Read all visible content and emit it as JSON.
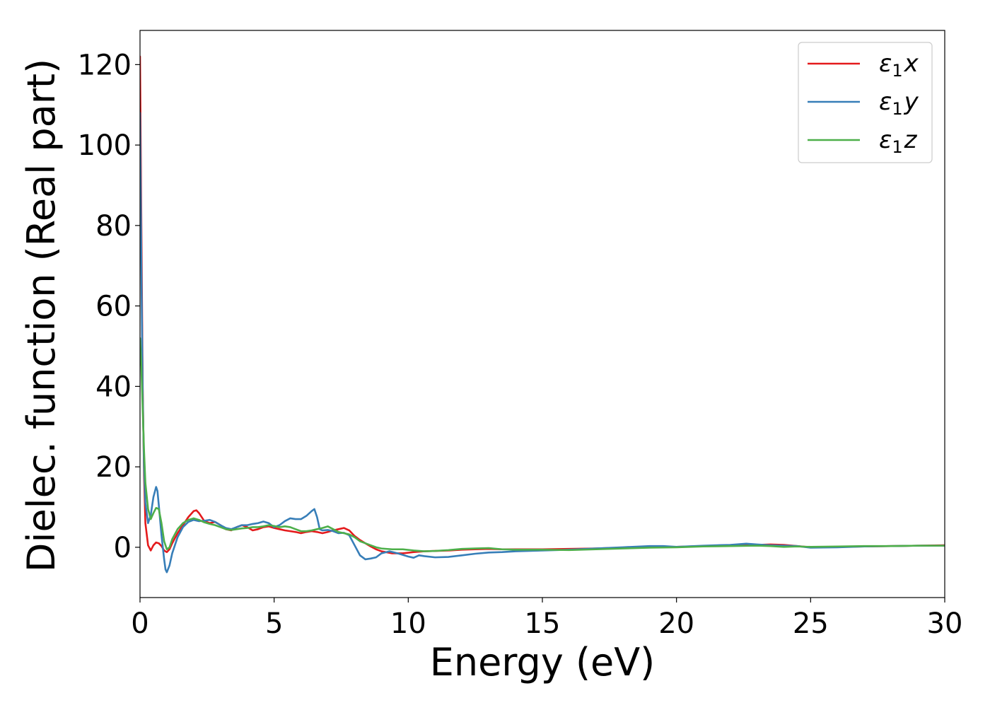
{
  "chart_data": {
    "type": "line",
    "title": "",
    "xlabel": "Energy (eV)",
    "ylabel": "Dielec. function (Real part)",
    "xlim": [
      0,
      30
    ],
    "ylim": [
      -12.5,
      128.5
    ],
    "x_ticks": [
      0,
      5,
      10,
      15,
      20,
      25,
      30
    ],
    "y_ticks": [
      0,
      20,
      40,
      60,
      80,
      100,
      120
    ],
    "grid": false,
    "legend_position": "top-right",
    "series": [
      {
        "name": "ε₁x",
        "legend_base": "ε",
        "legend_sub": "1",
        "legend_var": "x",
        "color": "#e41a1c",
        "points": [
          [
            0.0,
            122.0
          ],
          [
            0.05,
            80.0
          ],
          [
            0.1,
            40.0
          ],
          [
            0.15,
            18.0
          ],
          [
            0.2,
            6.0
          ],
          [
            0.3,
            0.5
          ],
          [
            0.4,
            -0.8
          ],
          [
            0.5,
            0.5
          ],
          [
            0.6,
            1.2
          ],
          [
            0.7,
            1.0
          ],
          [
            0.8,
            0.3
          ],
          [
            0.9,
            -0.8
          ],
          [
            1.0,
            -1.2
          ],
          [
            1.1,
            -0.5
          ],
          [
            1.2,
            1.0
          ],
          [
            1.4,
            3.5
          ],
          [
            1.6,
            5.5
          ],
          [
            1.8,
            7.5
          ],
          [
            2.0,
            9.0
          ],
          [
            2.1,
            9.2
          ],
          [
            2.2,
            8.5
          ],
          [
            2.4,
            6.5
          ],
          [
            2.6,
            6.0
          ],
          [
            2.8,
            6.3
          ],
          [
            3.0,
            5.5
          ],
          [
            3.2,
            4.5
          ],
          [
            3.4,
            4.2
          ],
          [
            3.6,
            5.0
          ],
          [
            3.8,
            5.5
          ],
          [
            4.0,
            5.0
          ],
          [
            4.2,
            4.2
          ],
          [
            4.4,
            4.5
          ],
          [
            4.6,
            5.0
          ],
          [
            4.8,
            5.2
          ],
          [
            5.0,
            4.8
          ],
          [
            5.2,
            4.5
          ],
          [
            5.4,
            4.2
          ],
          [
            5.6,
            4.0
          ],
          [
            5.8,
            3.8
          ],
          [
            6.0,
            3.5
          ],
          [
            6.2,
            3.8
          ],
          [
            6.4,
            4.0
          ],
          [
            6.6,
            3.8
          ],
          [
            6.8,
            3.5
          ],
          [
            7.0,
            3.8
          ],
          [
            7.2,
            4.2
          ],
          [
            7.4,
            4.5
          ],
          [
            7.6,
            4.8
          ],
          [
            7.8,
            4.2
          ],
          [
            8.0,
            2.8
          ],
          [
            8.2,
            1.8
          ],
          [
            8.4,
            1.0
          ],
          [
            8.6,
            0.2
          ],
          [
            8.8,
            -0.5
          ],
          [
            9.0,
            -1.0
          ],
          [
            9.4,
            -1.5
          ],
          [
            9.8,
            -1.5
          ],
          [
            10.2,
            -1.2
          ],
          [
            10.6,
            -1.0
          ],
          [
            11.0,
            -0.9
          ],
          [
            11.5,
            -0.8
          ],
          [
            12.0,
            -0.6
          ],
          [
            12.5,
            -0.5
          ],
          [
            13.0,
            -0.4
          ],
          [
            13.5,
            -0.5
          ],
          [
            14.0,
            -0.5
          ],
          [
            15.0,
            -0.5
          ],
          [
            16.0,
            -0.4
          ],
          [
            17.0,
            -0.3
          ],
          [
            18.0,
            -0.1
          ],
          [
            19.0,
            0.0
          ],
          [
            20.0,
            0.1
          ],
          [
            21.0,
            0.3
          ],
          [
            22.0,
            0.5
          ],
          [
            23.0,
            0.6
          ],
          [
            23.5,
            0.7
          ],
          [
            24.0,
            0.6
          ],
          [
            24.5,
            0.3
          ],
          [
            25.0,
            0.0
          ],
          [
            26.0,
            0.1
          ],
          [
            27.0,
            0.2
          ],
          [
            28.0,
            0.3
          ],
          [
            29.0,
            0.4
          ],
          [
            30.0,
            0.5
          ]
        ]
      },
      {
        "name": "ε₁y",
        "legend_base": "ε",
        "legend_sub": "1",
        "legend_var": "y",
        "color": "#377eb8",
        "points": [
          [
            0.0,
            108.0
          ],
          [
            0.05,
            70.0
          ],
          [
            0.1,
            38.0
          ],
          [
            0.15,
            20.0
          ],
          [
            0.2,
            11.0
          ],
          [
            0.3,
            6.0
          ],
          [
            0.4,
            8.0
          ],
          [
            0.5,
            12.5
          ],
          [
            0.6,
            15.0
          ],
          [
            0.65,
            14.0
          ],
          [
            0.7,
            10.5
          ],
          [
            0.8,
            3.0
          ],
          [
            0.9,
            -3.0
          ],
          [
            0.95,
            -5.5
          ],
          [
            1.0,
            -6.2
          ],
          [
            1.1,
            -4.5
          ],
          [
            1.2,
            -1.5
          ],
          [
            1.4,
            2.5
          ],
          [
            1.6,
            5.0
          ],
          [
            1.8,
            6.3
          ],
          [
            2.0,
            6.8
          ],
          [
            2.2,
            6.5
          ],
          [
            2.4,
            6.6
          ],
          [
            2.6,
            6.8
          ],
          [
            2.8,
            6.3
          ],
          [
            3.0,
            5.5
          ],
          [
            3.2,
            4.8
          ],
          [
            3.4,
            4.5
          ],
          [
            3.6,
            5.0
          ],
          [
            3.8,
            5.5
          ],
          [
            4.0,
            5.5
          ],
          [
            4.2,
            5.8
          ],
          [
            4.4,
            6.0
          ],
          [
            4.6,
            6.4
          ],
          [
            4.8,
            6.0
          ],
          [
            5.0,
            5.0
          ],
          [
            5.2,
            5.5
          ],
          [
            5.4,
            6.5
          ],
          [
            5.6,
            7.2
          ],
          [
            5.8,
            7.0
          ],
          [
            6.0,
            7.0
          ],
          [
            6.2,
            7.8
          ],
          [
            6.4,
            9.0
          ],
          [
            6.5,
            9.5
          ],
          [
            6.6,
            7.5
          ],
          [
            6.7,
            4.5
          ],
          [
            6.8,
            4.2
          ],
          [
            7.0,
            4.3
          ],
          [
            7.2,
            4.0
          ],
          [
            7.4,
            3.5
          ],
          [
            7.6,
            3.6
          ],
          [
            7.8,
            3.0
          ],
          [
            8.0,
            0.5
          ],
          [
            8.2,
            -2.0
          ],
          [
            8.4,
            -3.0
          ],
          [
            8.6,
            -2.8
          ],
          [
            8.8,
            -2.5
          ],
          [
            9.0,
            -1.5
          ],
          [
            9.3,
            -1.0
          ],
          [
            9.6,
            -1.5
          ],
          [
            10.0,
            -2.3
          ],
          [
            10.2,
            -2.6
          ],
          [
            10.4,
            -2.0
          ],
          [
            10.6,
            -2.2
          ],
          [
            11.0,
            -2.5
          ],
          [
            11.5,
            -2.4
          ],
          [
            12.0,
            -2.0
          ],
          [
            12.5,
            -1.6
          ],
          [
            13.0,
            -1.3
          ],
          [
            13.5,
            -1.2
          ],
          [
            14.0,
            -1.0
          ],
          [
            15.0,
            -0.8
          ],
          [
            16.0,
            -0.6
          ],
          [
            17.0,
            -0.3
          ],
          [
            18.0,
            0.0
          ],
          [
            19.0,
            0.3
          ],
          [
            19.5,
            0.3
          ],
          [
            20.0,
            0.1
          ],
          [
            21.0,
            0.4
          ],
          [
            22.0,
            0.6
          ],
          [
            22.6,
            0.9
          ],
          [
            23.0,
            0.7
          ],
          [
            23.5,
            0.5
          ],
          [
            24.0,
            0.4
          ],
          [
            24.5,
            0.3
          ],
          [
            25.0,
            -0.1
          ],
          [
            26.0,
            0.0
          ],
          [
            27.0,
            0.2
          ],
          [
            28.0,
            0.3
          ],
          [
            29.0,
            0.4
          ],
          [
            30.0,
            0.4
          ]
        ]
      },
      {
        "name": "ε₁z",
        "legend_base": "ε",
        "legend_sub": "1",
        "legend_var": "z",
        "color": "#4daf4a",
        "points": [
          [
            0.0,
            52.0
          ],
          [
            0.05,
            45.0
          ],
          [
            0.1,
            34.0
          ],
          [
            0.15,
            24.0
          ],
          [
            0.2,
            16.0
          ],
          [
            0.3,
            9.5
          ],
          [
            0.4,
            7.0
          ],
          [
            0.5,
            8.5
          ],
          [
            0.6,
            9.8
          ],
          [
            0.7,
            9.5
          ],
          [
            0.8,
            6.0
          ],
          [
            0.9,
            1.5
          ],
          [
            1.0,
            -0.5
          ],
          [
            1.1,
            0.0
          ],
          [
            1.2,
            2.0
          ],
          [
            1.4,
            4.5
          ],
          [
            1.6,
            6.0
          ],
          [
            1.8,
            6.8
          ],
          [
            2.0,
            7.2
          ],
          [
            2.2,
            6.8
          ],
          [
            2.4,
            6.2
          ],
          [
            2.6,
            5.8
          ],
          [
            2.8,
            5.5
          ],
          [
            3.0,
            5.0
          ],
          [
            3.2,
            4.5
          ],
          [
            3.4,
            4.3
          ],
          [
            3.6,
            4.5
          ],
          [
            3.8,
            4.7
          ],
          [
            4.0,
            4.8
          ],
          [
            4.2,
            5.0
          ],
          [
            4.4,
            5.0
          ],
          [
            4.6,
            5.2
          ],
          [
            4.8,
            5.5
          ],
          [
            5.0,
            5.3
          ],
          [
            5.2,
            5.0
          ],
          [
            5.4,
            5.2
          ],
          [
            5.6,
            5.0
          ],
          [
            5.8,
            4.5
          ],
          [
            6.0,
            4.0
          ],
          [
            6.2,
            4.0
          ],
          [
            6.4,
            4.2
          ],
          [
            6.6,
            4.5
          ],
          [
            6.8,
            4.8
          ],
          [
            7.0,
            5.2
          ],
          [
            7.2,
            4.5
          ],
          [
            7.4,
            3.8
          ],
          [
            7.6,
            3.5
          ],
          [
            7.8,
            3.2
          ],
          [
            8.0,
            2.5
          ],
          [
            8.2,
            1.5
          ],
          [
            8.4,
            1.0
          ],
          [
            8.6,
            0.5
          ],
          [
            8.8,
            0.0
          ],
          [
            9.0,
            -0.3
          ],
          [
            9.4,
            -0.5
          ],
          [
            9.8,
            -0.5
          ],
          [
            10.2,
            -0.8
          ],
          [
            10.6,
            -1.0
          ],
          [
            11.0,
            -0.9
          ],
          [
            11.5,
            -0.7
          ],
          [
            12.0,
            -0.4
          ],
          [
            12.5,
            -0.3
          ],
          [
            13.0,
            -0.2
          ],
          [
            13.5,
            -0.5
          ],
          [
            14.0,
            -0.6
          ],
          [
            15.0,
            -0.6
          ],
          [
            16.0,
            -0.7
          ],
          [
            17.0,
            -0.5
          ],
          [
            18.0,
            -0.3
          ],
          [
            19.0,
            -0.1
          ],
          [
            20.0,
            0.0
          ],
          [
            21.0,
            0.2
          ],
          [
            22.0,
            0.3
          ],
          [
            23.0,
            0.4
          ],
          [
            23.5,
            0.3
          ],
          [
            24.0,
            0.1
          ],
          [
            24.5,
            0.2
          ],
          [
            25.0,
            0.1
          ],
          [
            26.0,
            0.2
          ],
          [
            27.0,
            0.3
          ],
          [
            28.0,
            0.3
          ],
          [
            29.0,
            0.4
          ],
          [
            30.0,
            0.4
          ]
        ]
      }
    ]
  }
}
